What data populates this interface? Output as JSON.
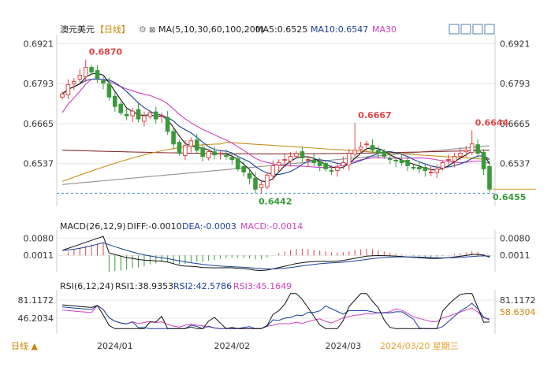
{
  "header": {
    "symbol": "澳元美元",
    "period_label": "【日线】",
    "ma_label": "MA(5,10,30,60,100,200)",
    "ma5_label": "MA5:0.6525",
    "ma10_label": "MA10:0.6547",
    "ma30_label": "MA30"
  },
  "macd_header": {
    "label": "MACD(26,12,9)",
    "diff_label": "DIFF:-0.0010",
    "dea_label": "DEA:-0.0003",
    "macd_label": "MACD:-0.0014"
  },
  "rsi_header": {
    "label": "RSI(6,12,24)",
    "rsi1_label": "RSI1:38.9353",
    "rsi2_label": "RSI2:42.5786",
    "rsi3_label": "RSI3:45.1649"
  },
  "footer": {
    "period_button": "日线 ▲",
    "date_info": "2024/03/20 星期三"
  },
  "colors": {
    "up": "#e04545",
    "down": "#3a9a3a",
    "ma5": "#111111",
    "ma10": "#1a3f9a",
    "ma30": "#d040c0",
    "ma60": "#c89020",
    "ma100": "#8a3030",
    "ma200": "#909090",
    "current_price_line": "#e0a030",
    "dashed_line": "#4a90d0",
    "grid": "#e6e6e6",
    "axis_text": "#333333"
  },
  "chart_data": [
    {
      "type": "candlestick",
      "title": "澳元美元 日线",
      "y_ticks": [
        "0.6921",
        "0.6793",
        "0.6665",
        "0.6537"
      ],
      "ylim": [
        0.64,
        0.695
      ],
      "x_ticks": [
        "2024/01",
        "2024/02",
        "2024/03"
      ],
      "x_tick_index": [
        9,
        29,
        48
      ],
      "current_price": 0.6455,
      "dashed_level": 0.6442,
      "annotations": [
        {
          "text": "0.6870",
          "index": 4,
          "value": 0.687,
          "kind": "high"
        },
        {
          "text": "0.6667",
          "index": 50,
          "value": 0.6667,
          "kind": "high"
        },
        {
          "text": "0.6644",
          "index": 70,
          "value": 0.6644,
          "kind": "high"
        },
        {
          "text": "0.6442",
          "index": 33,
          "value": 0.6442,
          "kind": "low"
        },
        {
          "text": "0.6455",
          "index": 73,
          "value": 0.6455,
          "kind": "last"
        }
      ],
      "close": [
        0.676,
        0.679,
        0.68,
        0.682,
        0.6845,
        0.683,
        0.681,
        0.6795,
        0.675,
        0.672,
        0.67,
        0.669,
        0.6705,
        0.668,
        0.669,
        0.67,
        0.668,
        0.669,
        0.664,
        0.66,
        0.657,
        0.6595,
        0.661,
        0.658,
        0.656,
        0.6575,
        0.6565,
        0.657,
        0.656,
        0.655,
        0.652,
        0.651,
        0.649,
        0.6455,
        0.647,
        0.65,
        0.653,
        0.654,
        0.655,
        0.656,
        0.657,
        0.6555,
        0.655,
        0.654,
        0.653,
        0.652,
        0.6515,
        0.6525,
        0.654,
        0.657,
        0.658,
        0.659,
        0.66,
        0.658,
        0.657,
        0.656,
        0.655,
        0.6545,
        0.654,
        0.653,
        0.6525,
        0.652,
        0.6515,
        0.651,
        0.652,
        0.654,
        0.655,
        0.656,
        0.657,
        0.658,
        0.66,
        0.657,
        0.652,
        0.6455
      ]
    },
    {
      "type": "macd",
      "title": "MACD(26,12,9)",
      "y_ticks": [
        "0.0080",
        "0.0011"
      ],
      "ylim": [
        -0.0045,
        0.01
      ],
      "diff": -0.001,
      "dea": -0.0003,
      "macd": -0.0014
    },
    {
      "type": "rsi",
      "title": "RSI(6,12,24)",
      "y_ticks": [
        "81.1172",
        "46.2034"
      ],
      "right_ticks": [
        "81.1172",
        "58.6304"
      ],
      "ylim": [
        25,
        95
      ],
      "rsi1": 38.9353,
      "rsi2": 42.5786,
      "rsi3": 45.1649
    }
  ]
}
